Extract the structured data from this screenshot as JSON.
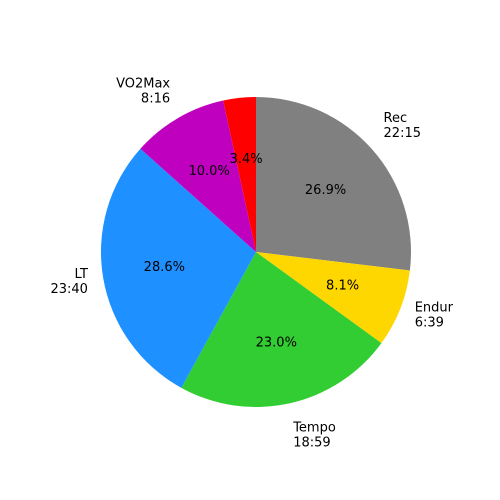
{
  "chart_data": {
    "type": "pie",
    "start_angle_deg": 90,
    "direction": "clockwise",
    "slices": [
      {
        "name": "Rec",
        "value_text": "22:15",
        "percent": 26.9,
        "percent_label": "26.9%",
        "color": "#808080"
      },
      {
        "name": "Endur",
        "value_text": "6:39",
        "percent": 8.1,
        "percent_label": "8.1%",
        "color": "#FFD700"
      },
      {
        "name": "Tempo",
        "value_text": "18:59",
        "percent": 23.0,
        "percent_label": "23.0%",
        "color": "#32CD32"
      },
      {
        "name": "LT",
        "value_text": "23:40",
        "percent": 28.6,
        "percent_label": "28.6%",
        "color": "#1E90FF"
      },
      {
        "name": "VO2Max",
        "value_text": "8:16",
        "percent": 10.0,
        "percent_label": "10.0%",
        "color": "#BF00BF"
      },
      {
        "name": "",
        "value_text": "",
        "percent": 3.4,
        "percent_label": "3.4%",
        "color": "#FF0000"
      }
    ]
  }
}
